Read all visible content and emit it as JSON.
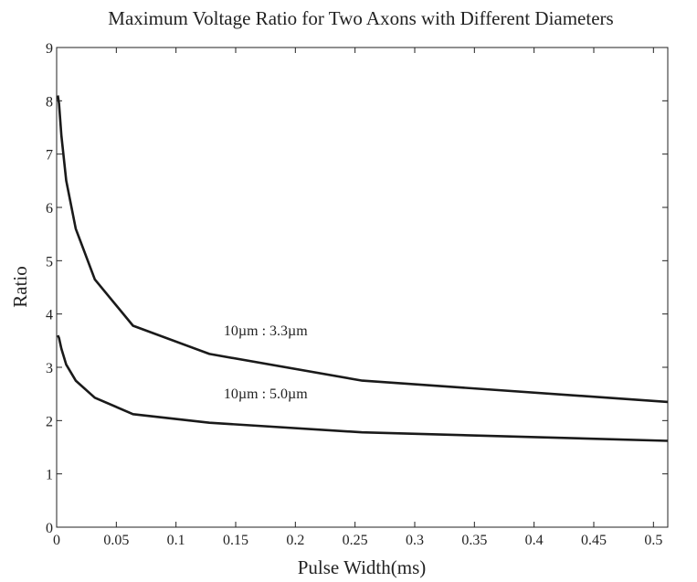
{
  "chart_data": {
    "type": "line",
    "title": "Maximum Voltage Ratio for Two Axons with Different Diameters",
    "xlabel": "Pulse Width(ms)",
    "ylabel": "Ratio",
    "xlim": [
      0,
      0.512
    ],
    "ylim": [
      0,
      9
    ],
    "xticks": [
      0,
      0.05,
      0.1,
      0.15,
      0.2,
      0.25,
      0.3,
      0.35,
      0.4,
      0.45,
      0.5
    ],
    "xtick_labels": [
      "0",
      "0.05",
      "0.1",
      "0.15",
      "0.2",
      "0.25",
      "0.3",
      "0.35",
      "0.4",
      "0.45",
      "0.5"
    ],
    "yticks": [
      0,
      1,
      2,
      3,
      4,
      5,
      6,
      7,
      8,
      9
    ],
    "ytick_labels": [
      "0",
      "1",
      "2",
      "3",
      "4",
      "5",
      "6",
      "7",
      "8",
      "9"
    ],
    "grid": false,
    "legend": "none",
    "series": [
      {
        "name": "10µm : 3.3µm",
        "x": [
          0.001,
          0.002,
          0.004,
          0.008,
          0.016,
          0.032,
          0.064,
          0.128,
          0.256,
          0.512
        ],
        "y": [
          8.1,
          7.95,
          7.35,
          6.5,
          5.6,
          4.65,
          3.78,
          3.25,
          2.75,
          2.35
        ]
      },
      {
        "name": "10µm : 5.0µm",
        "x": [
          0.001,
          0.002,
          0.004,
          0.008,
          0.016,
          0.032,
          0.064,
          0.128,
          0.256,
          0.512
        ],
        "y": [
          3.6,
          3.55,
          3.35,
          3.05,
          2.75,
          2.43,
          2.12,
          1.96,
          1.78,
          1.62
        ]
      }
    ],
    "annotations": [
      {
        "text": "10µm : 3.3µm",
        "x": 0.14,
        "y": 3.6
      },
      {
        "text": "10µm : 5.0µm",
        "x": 0.14,
        "y": 2.42
      }
    ],
    "colors": {
      "line": "#1a1a1a",
      "axis": "#222222",
      "background": "#ffffff"
    }
  }
}
